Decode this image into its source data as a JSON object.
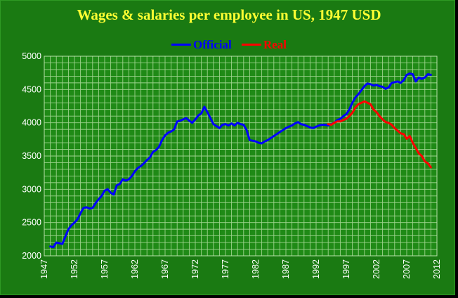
{
  "chart_data": {
    "type": "line",
    "title": "Wages & salaries per employee in US, 1947 USD",
    "xlabel": "",
    "ylabel": "",
    "xlim": [
      1947,
      2012
    ],
    "ylim": [
      2000,
      5000
    ],
    "grid": true,
    "legend": "top-center",
    "x_ticks": [
      "1947",
      "1952",
      "1957",
      "1962",
      "1967",
      "1972",
      "1977",
      "1982",
      "1987",
      "1992",
      "1997",
      "2002",
      "2007",
      "2012"
    ],
    "y_ticks": [
      "2000",
      "2500",
      "3000",
      "3500",
      "4000",
      "4500",
      "5000"
    ],
    "series": [
      {
        "name": "Official",
        "color": "#0000ff",
        "x": [
          1948.0,
          1948.5,
          1949.0,
          1949.5,
          1950.0,
          1950.5,
          1951.0,
          1951.5,
          1952.0,
          1952.5,
          1953.0,
          1953.5,
          1954.0,
          1954.5,
          1955.0,
          1955.5,
          1956.0,
          1956.5,
          1957.0,
          1957.5,
          1958.0,
          1958.5,
          1959.0,
          1959.5,
          1960.0,
          1960.5,
          1961.0,
          1961.5,
          1962.0,
          1962.5,
          1963.0,
          1963.5,
          1964.0,
          1964.5,
          1965.0,
          1965.5,
          1966.0,
          1966.5,
          1967.0,
          1967.5,
          1968.0,
          1968.5,
          1969.0,
          1969.5,
          1970.0,
          1970.5,
          1971.0,
          1971.5,
          1972.0,
          1972.5,
          1973.0,
          1973.5,
          1974.0,
          1974.5,
          1975.0,
          1975.5,
          1976.0,
          1976.5,
          1977.0,
          1977.5,
          1978.0,
          1978.5,
          1979.0,
          1979.5,
          1980.0,
          1980.5,
          1981.0,
          1981.5,
          1982.0,
          1982.5,
          1983.0,
          1983.5,
          1984.0,
          1984.5,
          1985.0,
          1985.5,
          1986.0,
          1986.5,
          1987.0,
          1987.5,
          1988.0,
          1988.5,
          1989.0,
          1989.5,
          1990.0,
          1990.5,
          1991.0,
          1991.5,
          1992.0,
          1992.5,
          1993.0,
          1993.5,
          1994.0,
          1994.5,
          1995.0,
          1995.5,
          1996.0,
          1996.5,
          1997.0,
          1997.5,
          1998.0,
          1998.5,
          1999.0,
          1999.5,
          2000.0,
          2000.5,
          2001.0,
          2001.5,
          2002.0,
          2002.5,
          2003.0,
          2003.5,
          2004.0,
          2004.5,
          2005.0,
          2005.5,
          2006.0,
          2006.5,
          2007.0,
          2007.5,
          2008.0,
          2008.5,
          2009.0,
          2009.5,
          2010.0,
          2010.5,
          2011.0
        ],
        "y": [
          2140,
          2130,
          2200,
          2190,
          2180,
          2290,
          2400,
          2460,
          2500,
          2550,
          2640,
          2720,
          2730,
          2710,
          2720,
          2790,
          2850,
          2900,
          2980,
          3000,
          2950,
          2920,
          3060,
          3080,
          3150,
          3130,
          3150,
          3200,
          3270,
          3320,
          3350,
          3390,
          3440,
          3480,
          3560,
          3590,
          3640,
          3740,
          3810,
          3850,
          3870,
          3900,
          4020,
          4030,
          4050,
          4070,
          4030,
          4000,
          4050,
          4110,
          4140,
          4240,
          4160,
          4070,
          3980,
          3950,
          3920,
          3970,
          3980,
          3960,
          3990,
          3960,
          4000,
          3980,
          3970,
          3890,
          3740,
          3730,
          3720,
          3700,
          3690,
          3720,
          3740,
          3770,
          3800,
          3830,
          3860,
          3890,
          3920,
          3940,
          3960,
          3990,
          4010,
          3980,
          3970,
          3950,
          3930,
          3920,
          3940,
          3960,
          3970,
          3970,
          3960,
          3980,
          4000,
          4040,
          4060,
          4100,
          4130,
          4200,
          4300,
          4380,
          4430,
          4490,
          4550,
          4590,
          4580,
          4560,
          4570,
          4550,
          4540,
          4510,
          4530,
          4600,
          4610,
          4620,
          4600,
          4640,
          4720,
          4740,
          4730,
          4620,
          4680,
          4660,
          4680,
          4730,
          4720
        ]
      },
      {
        "name": "Real",
        "color": "#ff0000",
        "x": [
          1994.0,
          1994.5,
          1995.0,
          1995.5,
          1996.0,
          1996.5,
          1997.0,
          1997.5,
          1998.0,
          1998.5,
          1999.0,
          1999.5,
          2000.0,
          2000.5,
          2001.0,
          2001.5,
          2002.0,
          2002.5,
          2003.0,
          2003.5,
          2004.0,
          2004.5,
          2005.0,
          2005.5,
          2006.0,
          2006.5,
          2007.0,
          2007.5,
          2008.0,
          2008.5,
          2009.0,
          2009.5,
          2010.0,
          2010.5,
          2011.0
        ],
        "y": [
          3980,
          3970,
          4000,
          4020,
          4020,
          4040,
          4060,
          4100,
          4150,
          4230,
          4280,
          4300,
          4320,
          4300,
          4280,
          4200,
          4160,
          4100,
          4050,
          4010,
          4000,
          3970,
          3920,
          3880,
          3840,
          3830,
          3760,
          3800,
          3700,
          3620,
          3540,
          3500,
          3420,
          3390,
          3330
        ]
      }
    ]
  }
}
